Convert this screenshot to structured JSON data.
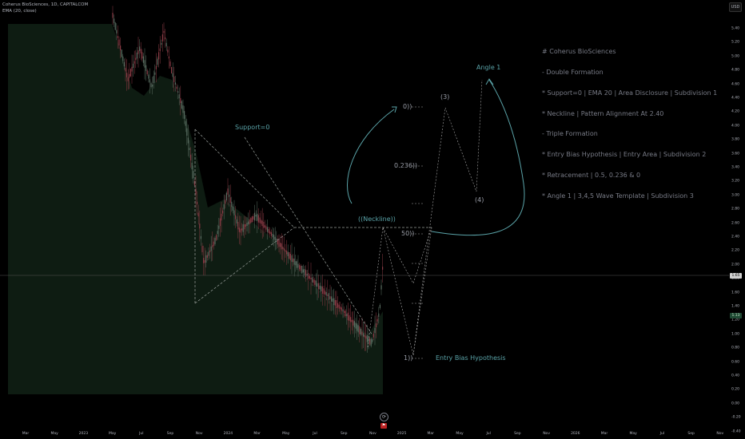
{
  "header": {
    "symbol_line": "Coherus BioSciences, 1D, CAPITALCOM",
    "ema_line": "EMA (20, close)",
    "currency": "USD"
  },
  "notes": [
    "# Coherus BioSciences",
    "- Double Formation",
    "* Support=0 | EMA 20 | Area Disclosure | Subdivision 1",
    "* Neckline | Pattern Alignment At 2.40",
    "- Triple Formation",
    "* Entry Bias Hypothesis | Entry Area | Subdivision 2",
    "* Retracement | 0.5, 0.236 & 0",
    "* Angle 1 | 3,4,5 Wave Template | Subdivision 3"
  ],
  "chart_labels": {
    "support": "Support=0",
    "neckline": "((Neckline))",
    "fib_0": "0))",
    "fib_0236": "0.236))",
    "fib_050": "50))",
    "fib_1": "1))",
    "wave_3": "(3)",
    "wave_4": "(4)",
    "angle": "Angle 1",
    "entry": "Entry Bias Hypothesis"
  },
  "price_badges": {
    "current": "1.65",
    "ema": "1.13"
  },
  "x_axis": {
    "ticks": [
      "Mar",
      "May",
      "2023",
      "May",
      "Jul",
      "Sep",
      "Nov",
      "2024",
      "Mar",
      "May",
      "Jul",
      "Sep",
      "Nov",
      "2025",
      "Mar",
      "May",
      "Jul",
      "Sep",
      "Nov",
      "2026",
      "Mar",
      "May",
      "Jul",
      "Sep",
      "Nov"
    ]
  },
  "y_axis": {
    "ticks": [
      "5.40",
      "5.20",
      "5.00",
      "4.80",
      "4.60",
      "4.40",
      "4.20",
      "4.00",
      "3.80",
      "3.60",
      "3.40",
      "3.20",
      "3.00",
      "2.80",
      "2.60",
      "2.40",
      "2.20",
      "2.00",
      "1.80",
      "1.60",
      "1.40",
      "1.20",
      "1.00",
      "0.80",
      "0.60",
      "0.40",
      "0.20",
      "0.00",
      "-0.20",
      "-0.40"
    ]
  },
  "colors": {
    "background": "#000000",
    "ema_area": "#0e1c12",
    "annotation_teal": "#5aa3a8",
    "candle_up": "#5a6e62",
    "candle_down": "#8a3b45"
  },
  "icons": {
    "logo": "tradingview-logo-icon",
    "flag": "flag-icon"
  }
}
